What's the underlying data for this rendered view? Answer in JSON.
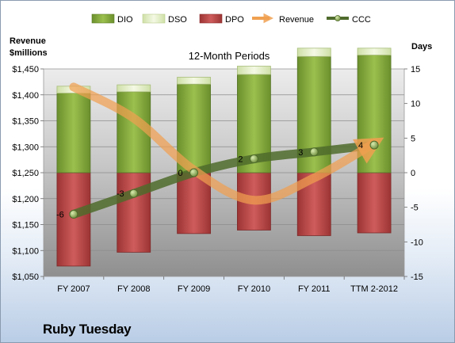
{
  "chart_data": {
    "type": "bar",
    "title": "12-Month Periods",
    "company": "Ruby Tuesday",
    "y_left_label": [
      "Revenue",
      "$millions"
    ],
    "y_right_label": "Days",
    "categories": [
      "FY 2007",
      "FY 2008",
      "FY 2009",
      "FY 2010",
      "FY 2011",
      "TTM 2-2012"
    ],
    "y_left_range": [
      1050,
      1450
    ],
    "y_left_ticks": [
      "$1,050",
      "$1,100",
      "$1,150",
      "$1,200",
      "$1,250",
      "$1,300",
      "$1,350",
      "$1,400",
      "$1,450"
    ],
    "y_right_range": [
      -15,
      15
    ],
    "y_right_ticks": [
      "-15",
      "-10",
      "-5",
      "0",
      "5",
      "10",
      "15"
    ],
    "grid": true,
    "legend_position": "top",
    "series": [
      {
        "name": "DIO",
        "type": "stacked-bar",
        "axis": "right",
        "values": [
          11.5,
          11.7,
          12.8,
          14.2,
          16.8,
          17.0
        ],
        "color": "#7ea03c"
      },
      {
        "name": "DSO",
        "type": "stacked-bar",
        "axis": "right",
        "values": [
          1.0,
          1.0,
          1.0,
          1.2,
          1.2,
          1.0
        ],
        "color": "#e6f0c8"
      },
      {
        "name": "DPO",
        "type": "stacked-bar-negative",
        "axis": "right",
        "values": [
          13.5,
          11.5,
          8.8,
          8.3,
          9.1,
          8.7
        ],
        "color": "#b84545"
      },
      {
        "name": "Revenue",
        "type": "line",
        "axis": "left",
        "values": [
          1415,
          1355,
          1255,
          1197,
          1240,
          1307
        ],
        "color": "#f0a050"
      },
      {
        "name": "CCC",
        "type": "line",
        "axis": "right",
        "values": [
          -6,
          -3,
          0,
          2,
          3,
          4
        ],
        "color": "#4f6b2c"
      }
    ],
    "data_labels": [
      "-6",
      "-3",
      "0",
      "2",
      "3",
      "4"
    ]
  }
}
